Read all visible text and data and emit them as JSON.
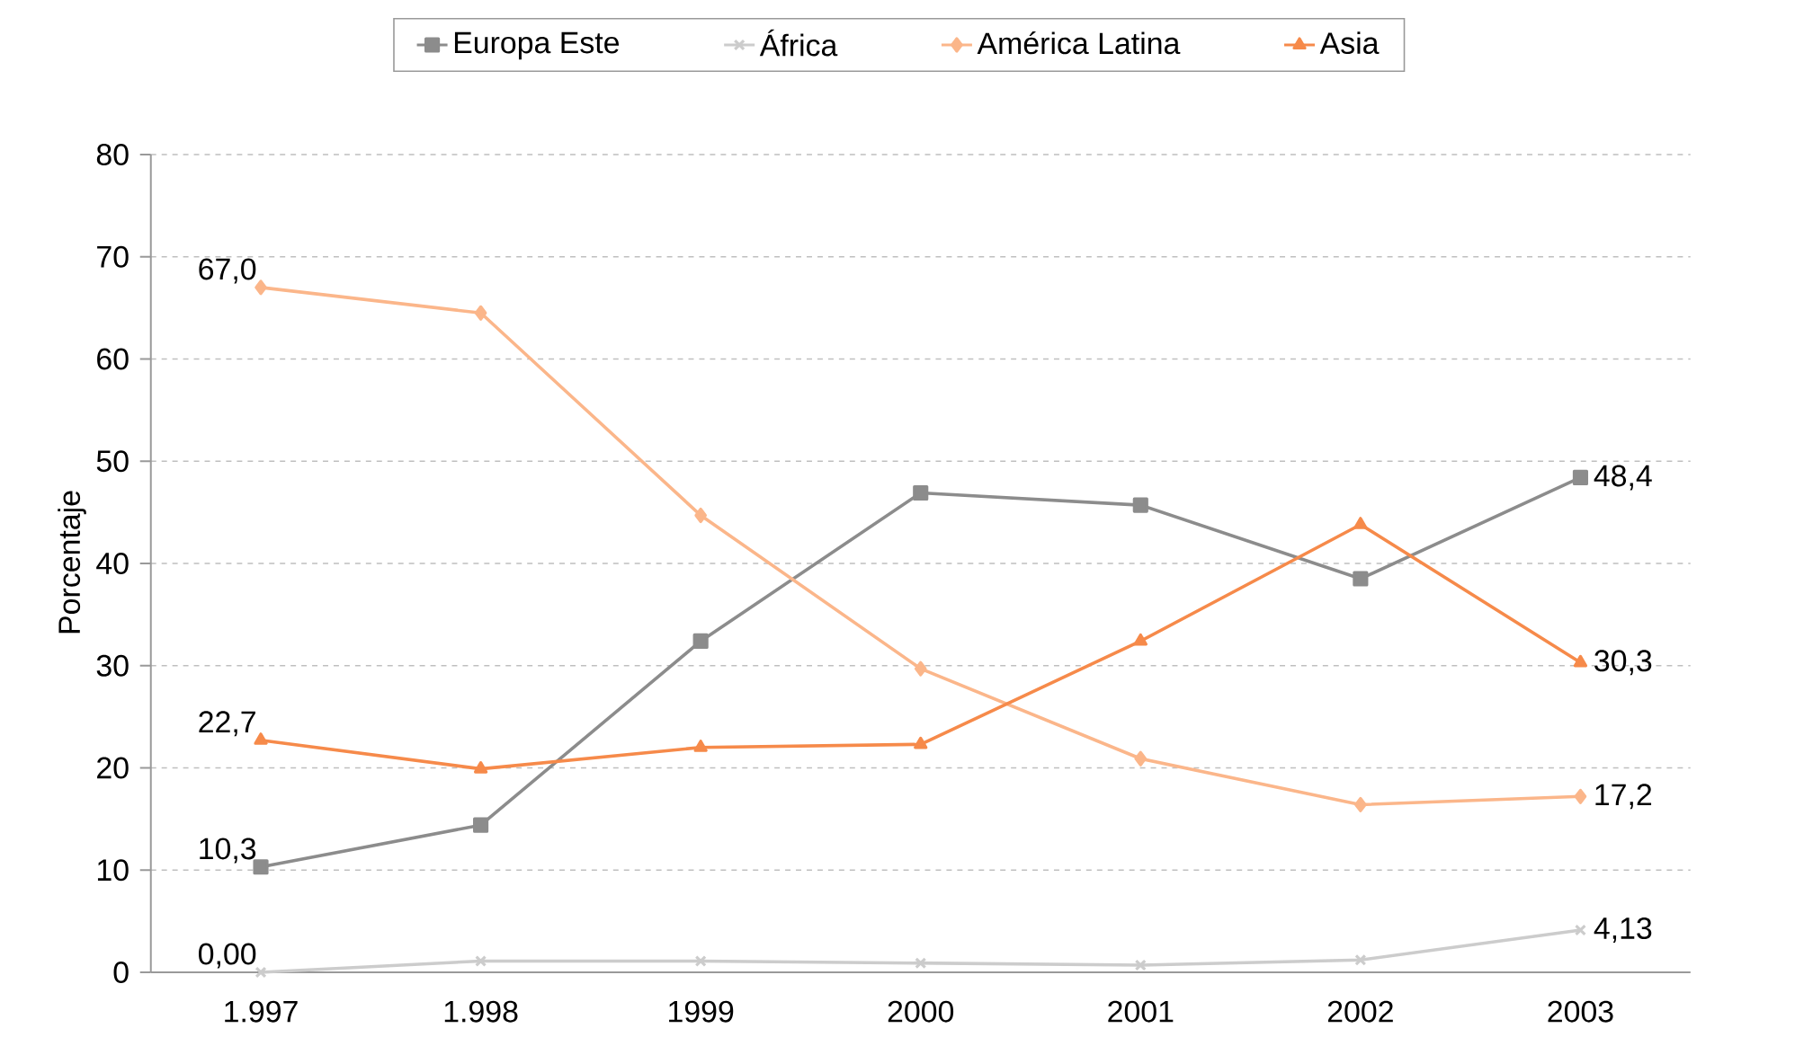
{
  "chart_data": {
    "type": "line",
    "ylabel": "Porcentaje",
    "categories": [
      "1.997",
      "1.998",
      "1999",
      "2000",
      "2001",
      "2002",
      "2003"
    ],
    "series": [
      {
        "name": "Europa Este",
        "color": "#8c8c8c",
        "marker": "square",
        "values": [
          10.3,
          14.4,
          32.4,
          46.9,
          45.7,
          38.5,
          48.4
        ],
        "value_labels": [
          "10,3",
          null,
          null,
          null,
          null,
          null,
          "48,4"
        ]
      },
      {
        "name": "África",
        "color": "#cccccc",
        "marker": "cross",
        "values": [
          0.0,
          1.1,
          1.1,
          0.9,
          0.7,
          1.2,
          4.13
        ],
        "value_labels": [
          "0,00",
          null,
          null,
          null,
          null,
          null,
          "4,13"
        ]
      },
      {
        "name": "América Latina",
        "color": "#fbb68a",
        "marker": "diamond",
        "values": [
          67.0,
          64.5,
          44.7,
          29.7,
          20.9,
          16.4,
          17.2
        ],
        "value_labels": [
          "67,0",
          null,
          null,
          null,
          null,
          null,
          "17,2"
        ]
      },
      {
        "name": "Asia",
        "color": "#f68a4a",
        "marker": "triangle",
        "values": [
          22.7,
          19.9,
          22.0,
          22.3,
          32.4,
          43.8,
          30.3
        ],
        "value_labels": [
          "22,7",
          null,
          null,
          null,
          null,
          null,
          "30,3"
        ]
      }
    ],
    "ylim": [
      0,
      80
    ],
    "yticks": [
      0,
      10,
      20,
      30,
      40,
      50,
      60,
      70,
      80
    ],
    "grid": "y",
    "legend": "top"
  }
}
